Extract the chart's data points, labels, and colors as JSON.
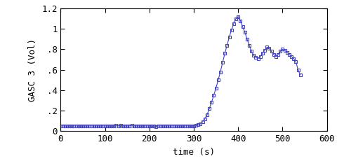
{
  "title": "",
  "xlabel": "time (s)",
  "ylabel": "GASC 3 (Vol)",
  "xlim": [
    0,
    600
  ],
  "ylim": [
    0,
    1.2
  ],
  "xticks": [
    0,
    100,
    200,
    300,
    400,
    500,
    600
  ],
  "yticks": [
    0.0,
    0.2,
    0.4,
    0.6,
    0.8,
    1.0,
    1.2
  ],
  "ytick_labels": [
    "0",
    ".2",
    ".4",
    ".6",
    ".8",
    "1",
    "1.2"
  ],
  "line_color": "#4444bb",
  "marker": "s",
  "markersize": 3,
  "linewidth": 0.8,
  "background_color": "#ffffff",
  "font_family": "monospace",
  "x": [
    0,
    5,
    10,
    15,
    20,
    25,
    30,
    35,
    40,
    45,
    50,
    55,
    60,
    65,
    70,
    75,
    80,
    85,
    90,
    95,
    100,
    105,
    110,
    115,
    120,
    125,
    130,
    135,
    140,
    145,
    150,
    155,
    160,
    165,
    170,
    175,
    180,
    185,
    190,
    195,
    200,
    205,
    210,
    215,
    220,
    225,
    230,
    235,
    240,
    245,
    250,
    255,
    260,
    265,
    270,
    275,
    280,
    285,
    290,
    295,
    300,
    305,
    310,
    315,
    320,
    325,
    330,
    335,
    340,
    345,
    350,
    355,
    360,
    365,
    370,
    375,
    380,
    385,
    390,
    395,
    400,
    405,
    410,
    415,
    420,
    425,
    430,
    435,
    440,
    445,
    450,
    455,
    460,
    465,
    470,
    475,
    480,
    485,
    490,
    495,
    500,
    505,
    510,
    515,
    520,
    525,
    530,
    535,
    540
  ],
  "y": [
    0.05,
    0.05,
    0.05,
    0.05,
    0.05,
    0.05,
    0.05,
    0.05,
    0.05,
    0.05,
    0.05,
    0.05,
    0.05,
    0.05,
    0.05,
    0.05,
    0.05,
    0.05,
    0.05,
    0.05,
    0.05,
    0.05,
    0.05,
    0.05,
    0.05,
    0.055,
    0.05,
    0.055,
    0.05,
    0.05,
    0.05,
    0.05,
    0.055,
    0.05,
    0.05,
    0.05,
    0.05,
    0.05,
    0.05,
    0.05,
    0.05,
    0.05,
    0.05,
    0.045,
    0.05,
    0.05,
    0.05,
    0.05,
    0.05,
    0.05,
    0.05,
    0.05,
    0.05,
    0.05,
    0.05,
    0.05,
    0.05,
    0.05,
    0.05,
    0.05,
    0.05,
    0.055,
    0.06,
    0.07,
    0.09,
    0.12,
    0.16,
    0.22,
    0.28,
    0.35,
    0.42,
    0.5,
    0.58,
    0.67,
    0.76,
    0.84,
    0.92,
    0.99,
    1.05,
    1.1,
    1.12,
    1.08,
    1.02,
    0.97,
    0.9,
    0.84,
    0.78,
    0.74,
    0.72,
    0.71,
    0.73,
    0.76,
    0.79,
    0.82,
    0.81,
    0.78,
    0.75,
    0.73,
    0.75,
    0.78,
    0.8,
    0.79,
    0.77,
    0.75,
    0.73,
    0.71,
    0.68,
    0.6,
    0.55
  ]
}
